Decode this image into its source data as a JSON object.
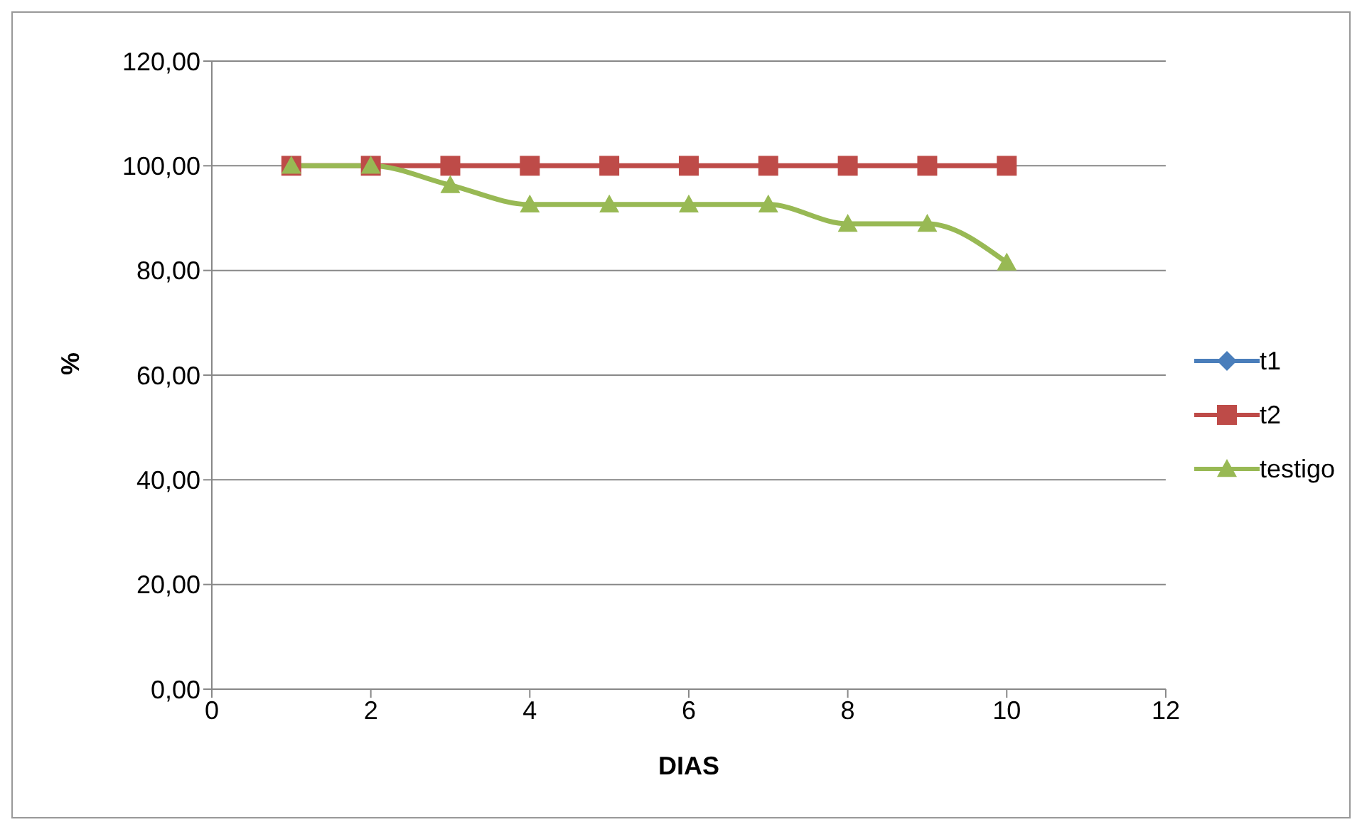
{
  "chart_data": {
    "type": "line",
    "xlabel": "DIAS",
    "ylabel": "%",
    "x": [
      1,
      2,
      3,
      4,
      5,
      6,
      7,
      8,
      9,
      10
    ],
    "xlim": [
      0,
      12
    ],
    "xticks": [
      0,
      2,
      4,
      6,
      8,
      10,
      12
    ],
    "ylim": [
      0,
      120
    ],
    "yticks": [
      {
        "value": 0,
        "label": "0,00"
      },
      {
        "value": 20,
        "label": "20,00"
      },
      {
        "value": 40,
        "label": "40,00"
      },
      {
        "value": 60,
        "label": "60,00"
      },
      {
        "value": 80,
        "label": "80,00"
      },
      {
        "value": 100,
        "label": "100,00"
      },
      {
        "value": 120,
        "label": "120,00"
      }
    ],
    "grid": "y",
    "legend": "right",
    "series": [
      {
        "name": "t1",
        "color": "#4a7ebb",
        "marker": "diamond",
        "values": [
          null,
          null,
          null,
          null,
          null,
          null,
          null,
          null,
          null,
          null
        ]
      },
      {
        "name": "t2",
        "color": "#be4b48",
        "marker": "square",
        "values": [
          100,
          100,
          100,
          100,
          100,
          100,
          100,
          100,
          100,
          100
        ]
      },
      {
        "name": "testigo",
        "color": "#98b954",
        "marker": "triangle",
        "values": [
          100,
          100,
          96.3,
          92.6,
          92.6,
          92.6,
          92.6,
          88.9,
          88.9,
          81.5
        ]
      }
    ]
  }
}
